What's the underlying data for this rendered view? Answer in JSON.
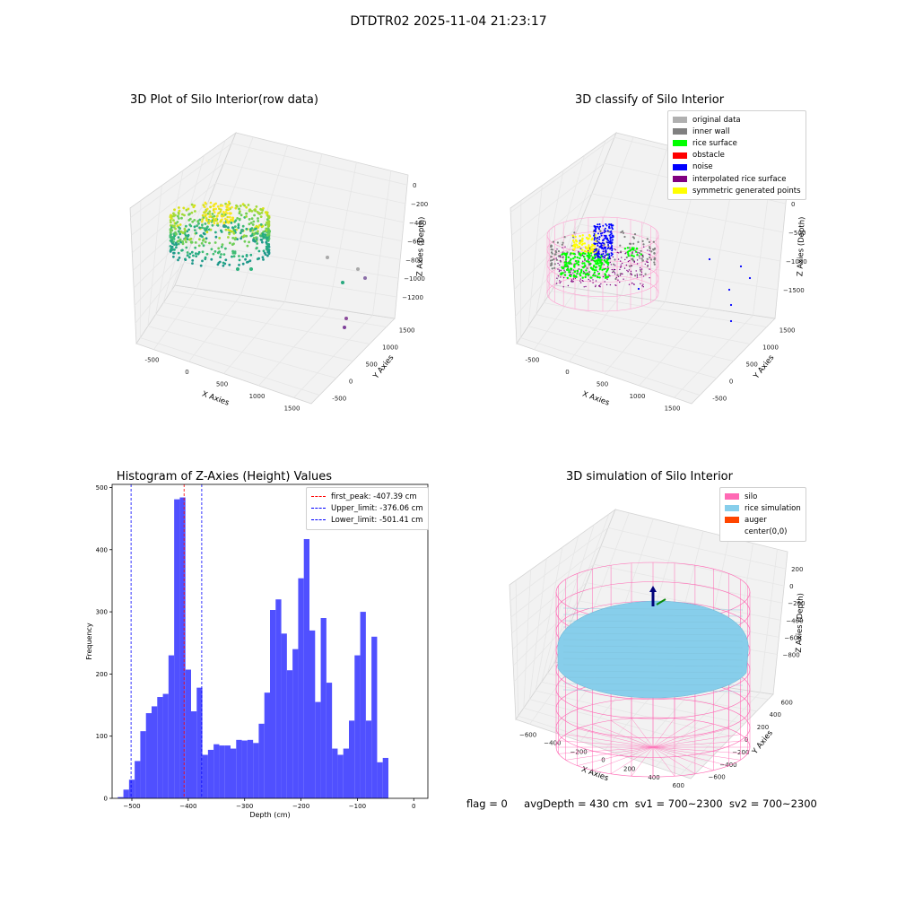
{
  "window_title": "DTDTR02 2025-11-04 21:23:17",
  "colors": {
    "original": "#b0b0b0",
    "inner_wall": "#808080",
    "rice_surface": "#00ff00",
    "obstacle": "#ff0000",
    "noise": "#0000ff",
    "interp": "#800080",
    "symmetric": "#ffff00",
    "silo": "#ff69b4",
    "rice_sim": "#87ceeb",
    "auger": "#ff4500",
    "hist_bar": "#5050ff"
  },
  "panels": {
    "raw": {
      "title": "3D Plot of Silo Interior(row data)",
      "xlabel": "X Axies",
      "ylabel": "Y Axies",
      "zlabel": "Z Axies (Depth)",
      "xticks": [
        "-500",
        "0",
        "500",
        "1000",
        "1500"
      ],
      "yticks": [
        "-500",
        "0",
        "500",
        "1000",
        "1500"
      ],
      "zticks": [
        "0",
        "−200",
        "−400",
        "−600",
        "−800",
        "−1000",
        "−1200"
      ]
    },
    "classify": {
      "title": "3D classify of Silo Interior",
      "xlabel": "X Axies",
      "ylabel": "Y Axies",
      "zlabel": "Z Axies (Depth)",
      "xticks": [
        "-500",
        "0",
        "500",
        "1000",
        "1500"
      ],
      "yticks": [
        "-500",
        "0",
        "500",
        "1000",
        "1500"
      ],
      "zticks": [
        "500",
        "0",
        "−500",
        "−1000",
        "−1500"
      ],
      "legend": [
        "original data",
        "inner wall",
        "rice surface",
        "obstacle",
        "noise",
        "interpolated rice surface",
        "symmetric generated points"
      ]
    },
    "simulation": {
      "title": "3D simulation of Silo Interior",
      "xlabel": "X Axies",
      "ylabel": "Y Axies",
      "zlabel": "Z Axies (Depth)",
      "xticks": [
        "−600",
        "−400",
        "−200",
        "0",
        "200",
        "400",
        "600"
      ],
      "yticks": [
        "−600",
        "−400",
        "−200",
        "0",
        "200",
        "400",
        "600"
      ],
      "zticks": [
        "200",
        "0",
        "−200",
        "−400",
        "−600",
        "−800"
      ],
      "legend": [
        "silo",
        "rice simulation",
        "auger",
        "center(0,0)"
      ]
    }
  },
  "status": {
    "flag": "flag = 0",
    "avg_depth": "avgDepth = 430 cm",
    "sv1": "sv1 = 700~2300",
    "sv2": "sv2 = 700~2300"
  },
  "chart_data": [
    {
      "type": "bar",
      "title": "Histogram of Z-Axies (Height) Values",
      "xlabel": "Depth (cm)",
      "ylabel": "Frequency",
      "xlim": [
        -535,
        25
      ],
      "ylim": [
        0,
        505
      ],
      "xticks": [
        -500,
        -400,
        -300,
        -200,
        -100,
        0
      ],
      "yticks": [
        0,
        100,
        200,
        300,
        400,
        500
      ],
      "bin_start": -525,
      "bin_width": 10,
      "values": [
        2,
        14,
        30,
        60,
        108,
        137,
        148,
        163,
        168,
        230,
        481,
        484,
        207,
        140,
        178,
        70,
        78,
        87,
        85,
        85,
        80,
        94,
        93,
        94,
        89,
        120,
        170,
        303,
        320,
        265,
        206,
        240,
        354,
        417,
        270,
        155,
        290,
        186,
        80,
        70,
        80,
        125,
        230,
        300,
        125,
        260,
        58,
        65
      ],
      "vlines": [
        {
          "label": "first_peak: -407.39 cm",
          "x": -407.39,
          "color": "#ff0000"
        },
        {
          "label": "Upper_limit: -376.06 cm",
          "x": -376.06,
          "color": "#0000ff"
        },
        {
          "label": "Lower_limit: -501.41 cm",
          "x": -501.41,
          "color": "#0000ff"
        }
      ]
    }
  ]
}
